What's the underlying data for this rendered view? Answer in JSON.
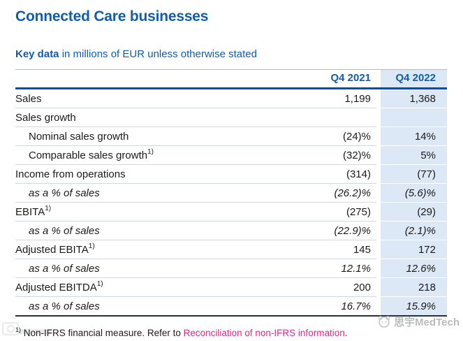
{
  "header": {
    "title": "Connected Care businesses",
    "subtitle_bold": "Key data",
    "subtitle_rest": " in millions of EUR unless otherwise stated"
  },
  "table": {
    "col_2021": "Q4 2021",
    "col_2022": "Q4 2022",
    "rows": [
      {
        "label": "Sales",
        "sup": "",
        "indent": false,
        "italic": false,
        "v2021": "1,199",
        "v2022": "1,368"
      },
      {
        "label": "Sales growth",
        "sup": "",
        "indent": false,
        "italic": false,
        "v2021": "",
        "v2022": ""
      },
      {
        "label": "Nominal sales growth",
        "sup": "",
        "indent": true,
        "italic": false,
        "v2021": "(24)%",
        "v2022": "14%"
      },
      {
        "label": "Comparable sales growth",
        "sup": "1)",
        "indent": true,
        "italic": false,
        "v2021": "(32)%",
        "v2022": "5%"
      },
      {
        "label": "Income from operations",
        "sup": "",
        "indent": false,
        "italic": false,
        "v2021": "(314)",
        "v2022": "(77)"
      },
      {
        "label": "as a % of sales",
        "sup": "",
        "indent": true,
        "italic": true,
        "v2021": "(26.2)%",
        "v2022": "(5.6)%"
      },
      {
        "label": "EBITA",
        "sup": "1)",
        "indent": false,
        "italic": false,
        "v2021": "(275)",
        "v2022": "(29)"
      },
      {
        "label": "as a % of sales",
        "sup": "",
        "indent": true,
        "italic": true,
        "v2021": "(22.9)%",
        "v2022": "(2.1)%"
      },
      {
        "label": "Adjusted EBITA",
        "sup": "1)",
        "indent": false,
        "italic": false,
        "v2021": "145",
        "v2022": "172"
      },
      {
        "label": "as a % of sales",
        "sup": "",
        "indent": true,
        "italic": true,
        "v2021": "12.1%",
        "v2022": "12.6%"
      },
      {
        "label": "Adjusted EBITDA",
        "sup": "1)",
        "indent": false,
        "italic": false,
        "v2021": "200",
        "v2022": "218"
      },
      {
        "label": "as a % of sales",
        "sup": "",
        "indent": true,
        "italic": true,
        "v2021": "16.7%",
        "v2022": "15.9%"
      }
    ]
  },
  "footnote": {
    "marker": "1)",
    "text_before_link": " Non-IFRS financial measure. Refer to ",
    "link": "Reconciliation of non-IFRS information",
    "text_after_link": "."
  },
  "watermark": {
    "bottom_right": "思宇MedTech"
  },
  "colors": {
    "brand_blue": "#0f5dad",
    "header_rule_blue": "#0351a0",
    "column_highlight": "#dce8f5",
    "row_divider": "#cdd8e5",
    "bottom_rule": "#2b2f36",
    "link_magenta": "#e22786",
    "body_text": "#1a1a1a",
    "watermark_gray": "#b9bcbf"
  }
}
